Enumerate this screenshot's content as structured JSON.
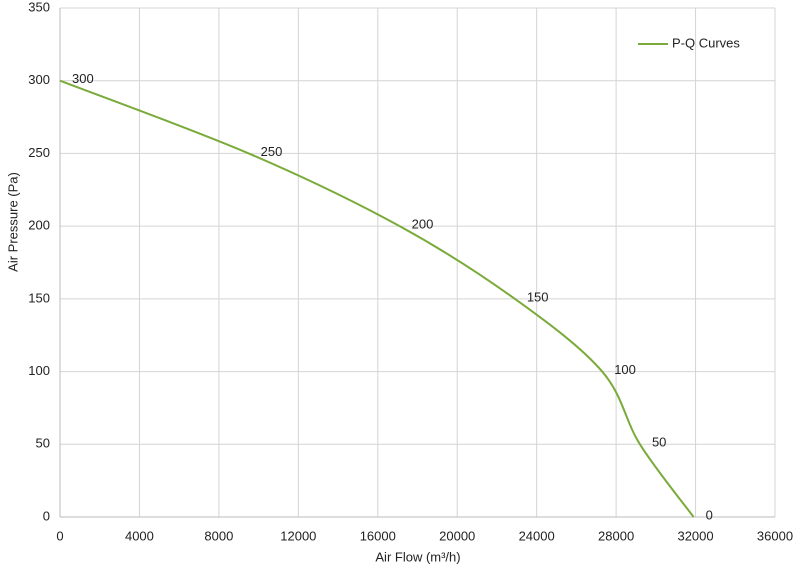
{
  "chart_data": {
    "type": "line",
    "x_label": "Air Flow  (m³/h)",
    "y_label": "Air Pressure  (Pa)",
    "x": [
      0,
      9500,
      17100,
      22900,
      27300,
      29200,
      31900
    ],
    "series": [
      {
        "name": "P-Q Curves",
        "color": "#7aab3a",
        "values": [
          300,
          250,
          200,
          150,
          100,
          50,
          0
        ]
      }
    ],
    "xlim": [
      0,
      36000
    ],
    "xticks": [
      0,
      4000,
      8000,
      12000,
      16000,
      20000,
      24000,
      28000,
      32000,
      36000
    ],
    "ylim": [
      0,
      350
    ],
    "yticks": [
      0,
      50,
      100,
      150,
      200,
      250,
      300,
      350
    ],
    "grid": true,
    "legend": "top-right"
  }
}
